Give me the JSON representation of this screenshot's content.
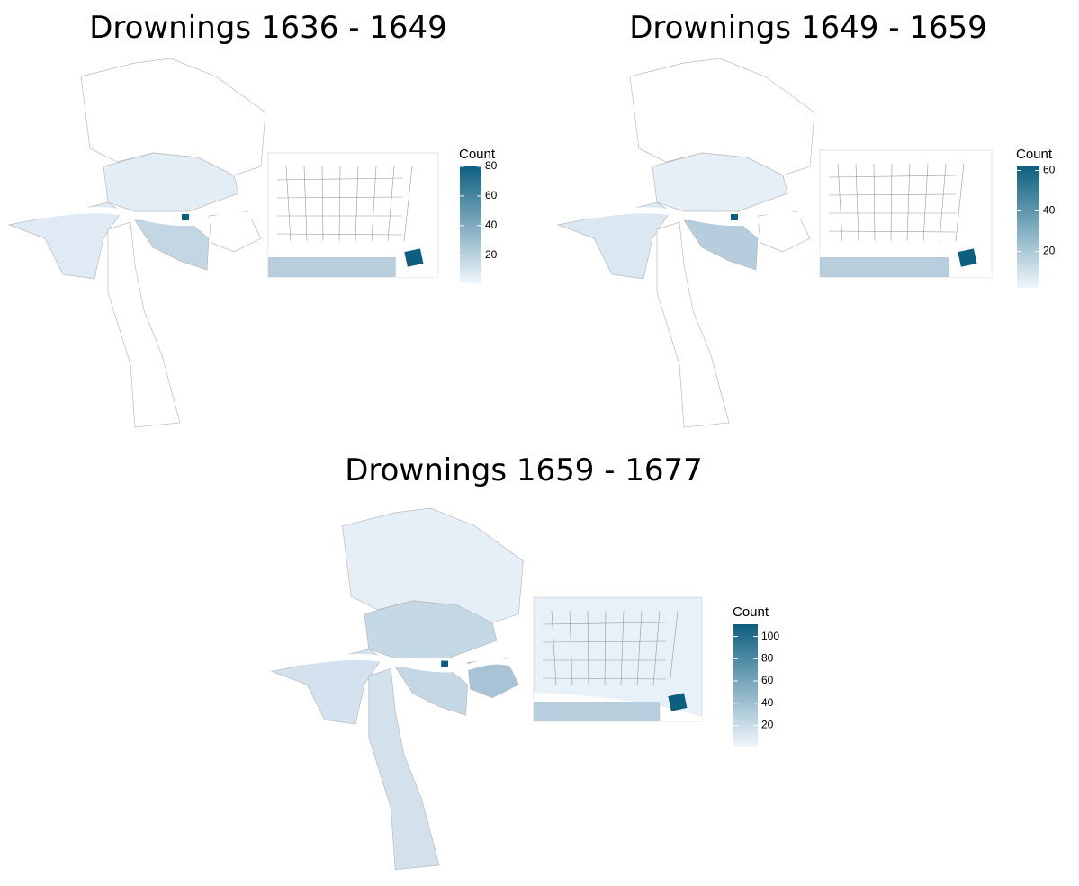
{
  "panels": [
    {
      "title": "Drownings 1636 - 1649",
      "legend": {
        "title": "Count",
        "range": [
          1,
          80
        ],
        "ticks": [
          20,
          40,
          60,
          80
        ],
        "low_color": "#f0f6fc",
        "high_color": "#0d5f80"
      }
    },
    {
      "title": "Drownings 1649 - 1659",
      "legend": {
        "title": "Count",
        "range": [
          2,
          62
        ],
        "ticks": [
          20,
          40,
          60
        ],
        "low_color": "#f0f6fc",
        "high_color": "#0d5f80"
      }
    },
    {
      "title": "Drownings 1659 - 1677",
      "legend": {
        "title": "Count",
        "range": [
          1,
          111
        ],
        "ticks": [
          20,
          40,
          60,
          80,
          100
        ],
        "low_color": "#f0f6fc",
        "high_color": "#0d5f80"
      }
    }
  ]
}
